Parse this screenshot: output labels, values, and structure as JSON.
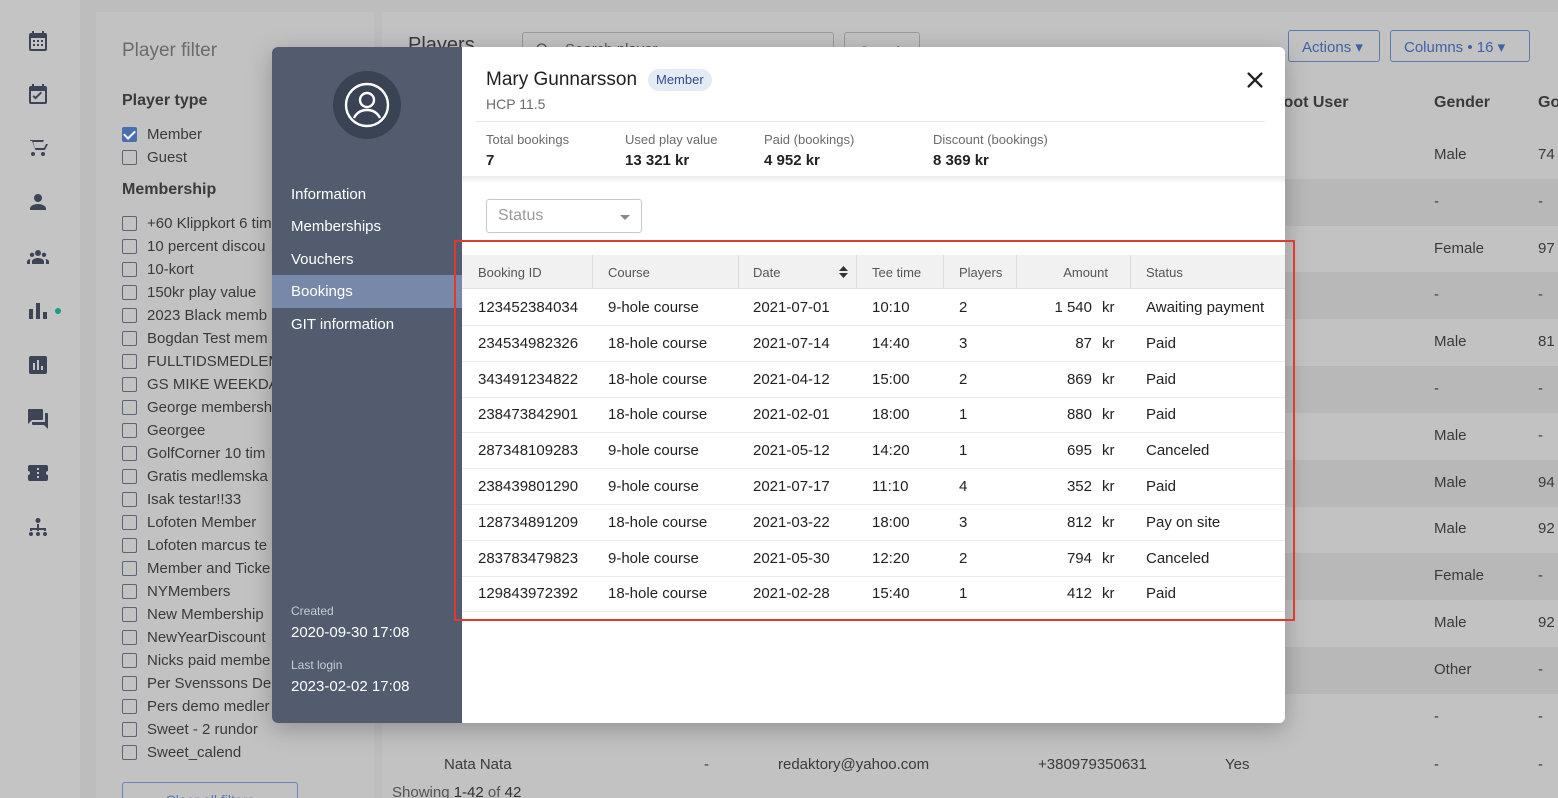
{
  "rail": {
    "icons": [
      "calendar-icon",
      "calendar-check-icon",
      "golf-cart-icon",
      "person-icon",
      "group-icon",
      "bar-chart-icon",
      "report-icon",
      "chat-icon",
      "ticket-icon",
      "organization-icon"
    ]
  },
  "filter": {
    "title": "Player filter",
    "player_type_heading": "Player type",
    "player_types": [
      {
        "label": "Member",
        "checked": true
      },
      {
        "label": "Guest",
        "checked": false
      }
    ],
    "membership_heading": "Membership",
    "memberships": [
      "+60 Klippkort 6 tim",
      "10 percent discou",
      "10-kort",
      "150kr play value",
      "2023 Black memb",
      "Bogdan Test mem",
      "FULLTIDSMEDLEM",
      "GS MIKE WEEKDA",
      "George membersh",
      "Georgee",
      "GolfCorner 10 tim",
      "Gratis medlemska",
      "Isak testar!!33",
      "Lofoten Member",
      "Lofoten marcus te",
      "Member and Ticke",
      "NYMembers",
      "New Membership",
      "NewYearDiscount",
      "Nicks paid membe",
      "Per Svenssons De",
      "Pers demo medler",
      "Sweet - 2 rundor",
      "Sweet_calend"
    ],
    "clear_label": "Clear all filters"
  },
  "players": {
    "title": "Players",
    "search_placeholder": "Search player",
    "search_button": "Search",
    "actions_label": "Actions ▾",
    "columns_label": "Columns • 16 ▾",
    "headers": {
      "boot_user": "Boot User",
      "gender": "Gender",
      "golf_id": "Go"
    },
    "bg_rows": [
      {
        "gender": "Male",
        "hcp": "74"
      },
      {
        "gender": "-",
        "hcp": "-"
      },
      {
        "gender": "Female",
        "hcp": "97"
      },
      {
        "gender": "-",
        "hcp": "-"
      },
      {
        "gender": "Male",
        "hcp": "81"
      },
      {
        "gender": "-",
        "hcp": "-"
      },
      {
        "gender": "Male",
        "hcp": "-"
      },
      {
        "gender": "Male",
        "hcp": "94"
      },
      {
        "gender": "Male",
        "hcp": "92"
      },
      {
        "gender": "Female",
        "hcp": "-"
      },
      {
        "gender": "Male",
        "hcp": "92"
      },
      {
        "gender": "Other",
        "hcp": "-"
      },
      {
        "gender": "-",
        "hcp": "-"
      }
    ],
    "last_row": {
      "name": "Nata Nata",
      "dash": "-",
      "email": "redaktory@yahoo.com",
      "phone": "+380979350631",
      "boot": "Yes",
      "gender": "-",
      "hcp": "-"
    },
    "showing_prefix": "Showing",
    "showing_range": "1-42",
    "showing_of": "of",
    "showing_total": "42"
  },
  "modal": {
    "nav": [
      "Information",
      "Memberships",
      "Vouchers",
      "Bookings",
      "GIT information"
    ],
    "active_nav": "Bookings",
    "created_label": "Created",
    "created_value": "2020-09-30 17:08",
    "last_login_label": "Last login",
    "last_login_value": "2023-02-02 17:08",
    "name": "Mary Gunnarsson",
    "badge": "Member",
    "hcp": "HCP 11.5",
    "stats": [
      {
        "label": "Total bookings",
        "value": "7"
      },
      {
        "label": "Used play value",
        "value": "13 321 kr"
      },
      {
        "label": "Paid (bookings)",
        "value": "4 952 kr"
      },
      {
        "label": "Discount (bookings)",
        "value": "8 369 kr"
      }
    ],
    "status_placeholder": "Status",
    "columns": [
      "Booking ID",
      "Course",
      "Date",
      "Tee time",
      "Players",
      "Amount",
      "Status"
    ],
    "currency": "kr",
    "bookings": [
      {
        "id": "123452384034",
        "course": "9-hole course",
        "date": "2021-07-01",
        "tee": "10:10",
        "players": "2",
        "amount": "1 540",
        "status": "Awaiting payment"
      },
      {
        "id": "234534982326",
        "course": "18-hole course",
        "date": "2021-07-14",
        "tee": "14:40",
        "players": "3",
        "amount": "87",
        "status": "Paid"
      },
      {
        "id": "343491234822",
        "course": "18-hole course",
        "date": "2021-04-12",
        "tee": "15:00",
        "players": "2",
        "amount": "869",
        "status": "Paid"
      },
      {
        "id": "238473842901",
        "course": "18-hole course",
        "date": "2021-02-01",
        "tee": "18:00",
        "players": "1",
        "amount": "880",
        "status": "Paid"
      },
      {
        "id": "287348109283",
        "course": "9-hole course",
        "date": "2021-05-12",
        "tee": "14:20",
        "players": "1",
        "amount": "695",
        "status": "Canceled"
      },
      {
        "id": "238439801290",
        "course": "9-hole course",
        "date": "2021-07-17",
        "tee": "11:10",
        "players": "4",
        "amount": "352",
        "status": "Paid"
      },
      {
        "id": "128734891209",
        "course": "18-hole course",
        "date": "2021-03-22",
        "tee": "18:00",
        "players": "3",
        "amount": "812",
        "status": "Pay on site"
      },
      {
        "id": "283783479823",
        "course": "9-hole course",
        "date": "2021-05-30",
        "tee": "12:20",
        "players": "2",
        "amount": "794",
        "status": "Canceled"
      },
      {
        "id": "129843972392",
        "course": "18-hole course",
        "date": "2021-02-28",
        "tee": "15:40",
        "players": "1",
        "amount": "412",
        "status": "Paid"
      }
    ]
  },
  "colors": {
    "accent": "#4a6fb0",
    "sidebar": "#525c6e",
    "active_nav": "#7788a8",
    "highlight": "#e03a2a"
  }
}
